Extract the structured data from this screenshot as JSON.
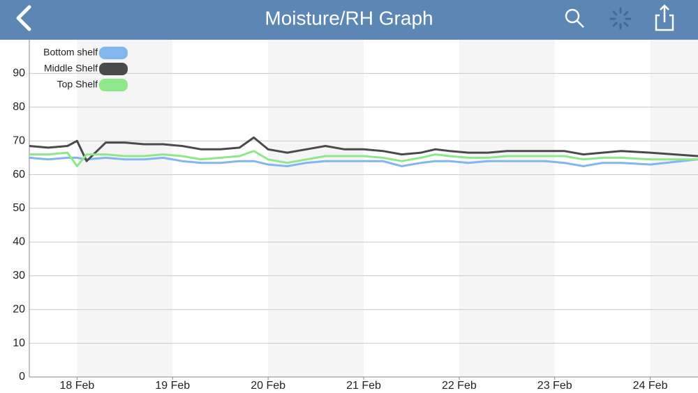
{
  "chart_data": {
    "type": "line",
    "title": "Moisture/RH Graph",
    "x": [
      17.5,
      17.7,
      17.9,
      18.0,
      18.1,
      18.3,
      18.5,
      18.7,
      18.9,
      19.1,
      19.3,
      19.5,
      19.7,
      19.85,
      20.0,
      20.2,
      20.4,
      20.6,
      20.8,
      21.0,
      21.2,
      21.4,
      21.6,
      21.75,
      21.9,
      22.1,
      22.3,
      22.5,
      22.7,
      22.9,
      23.1,
      23.3,
      23.5,
      23.7,
      24.0,
      24.5
    ],
    "series": [
      {
        "name": "Bottom shelf",
        "color": "#82b6ef",
        "values": [
          65,
          64.5,
          65,
          65,
          64.5,
          65,
          64.5,
          64.5,
          65,
          64,
          63.5,
          63.5,
          64,
          64,
          63,
          62.5,
          63.5,
          64,
          64,
          64,
          64,
          62.5,
          63.5,
          64,
          64,
          63.5,
          64,
          64,
          64,
          64,
          63.5,
          62.5,
          63.5,
          63.5,
          63,
          64.5
        ]
      },
      {
        "name": "Middle Shelf",
        "color": "#4a4a4d",
        "values": [
          68.5,
          68,
          68.5,
          70,
          64,
          69.5,
          69.5,
          69,
          69,
          68.5,
          67.5,
          67.5,
          68,
          71,
          67.5,
          66.5,
          67.5,
          68.5,
          67.5,
          67.5,
          67,
          66,
          66.5,
          67.5,
          67,
          66.5,
          66.5,
          67,
          67,
          67,
          67,
          66,
          66.5,
          67,
          66.5,
          65.5
        ]
      },
      {
        "name": "Top Shelf",
        "color": "#8ee88a",
        "values": [
          66,
          66,
          66.5,
          62.5,
          66,
          66,
          65.5,
          65.5,
          66,
          65.5,
          64.5,
          65,
          65.5,
          67,
          64.5,
          63.5,
          64.5,
          65.5,
          65.5,
          65.5,
          65,
          64,
          65,
          66,
          65.5,
          65,
          65,
          65.5,
          65.5,
          65.5,
          65.5,
          64.5,
          65,
          65,
          64.5,
          64.5
        ]
      }
    ],
    "xlim": [
      17.5,
      24.5
    ],
    "xticks": [
      {
        "value": 18,
        "label": "18 Feb"
      },
      {
        "value": 19,
        "label": "19 Feb"
      },
      {
        "value": 20,
        "label": "20 Feb"
      },
      {
        "value": 21,
        "label": "21 Feb"
      },
      {
        "value": 22,
        "label": "22 Feb"
      },
      {
        "value": 23,
        "label": "23 Feb"
      },
      {
        "value": 24,
        "label": "24 Feb"
      }
    ],
    "ylim": [
      0,
      100
    ],
    "yticks": [
      0,
      10,
      20,
      30,
      40,
      50,
      60,
      70,
      80,
      90
    ],
    "grid": true,
    "legend": "top-left"
  }
}
